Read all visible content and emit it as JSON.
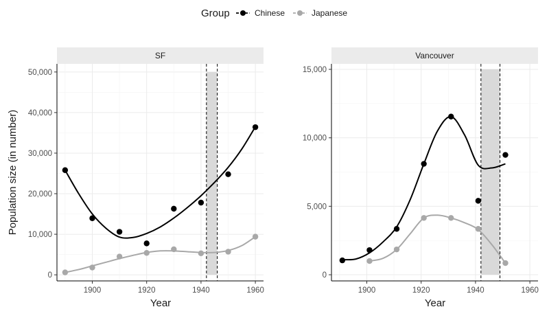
{
  "legend": {
    "title": "Group",
    "items": [
      {
        "label": "Chinese",
        "color": "#000000"
      },
      {
        "label": "Japanese",
        "color": "#a8a8a8"
      }
    ]
  },
  "axes": {
    "xlabel": "Year",
    "ylabel": "Population size (in number)"
  },
  "chart_data": [
    {
      "type": "scatter",
      "panel": "SF",
      "xlim": [
        1887,
        1963
      ],
      "ylim": [
        -1500,
        52000
      ],
      "xticks": [
        1900,
        1920,
        1940,
        1960
      ],
      "yticks": [
        0,
        10000,
        20000,
        30000,
        40000,
        50000
      ],
      "ytick_labels": [
        "0",
        "10,000",
        "20,000",
        "30,000",
        "40,000",
        "50,000"
      ],
      "grid": true,
      "shaded_interval": [
        1942,
        1946
      ],
      "series": [
        {
          "name": "Chinese",
          "color": "#000000",
          "points": [
            [
              1890,
              25800
            ],
            [
              1900,
              13950
            ],
            [
              1910,
              10600
            ],
            [
              1920,
              7750
            ],
            [
              1930,
              16300
            ],
            [
              1940,
              17800
            ],
            [
              1950,
              24800
            ],
            [
              1960,
              36400
            ]
          ],
          "smooth": [
            [
              1890,
              25800
            ],
            [
              1895,
              20000
            ],
            [
              1900,
              15000
            ],
            [
              1905,
              11500
            ],
            [
              1910,
              9300
            ],
            [
              1915,
              9200
            ],
            [
              1920,
              10200
            ],
            [
              1925,
              11800
            ],
            [
              1930,
              14000
            ],
            [
              1935,
              16600
            ],
            [
              1940,
              19500
            ],
            [
              1945,
              22800
            ],
            [
              1950,
              26500
            ],
            [
              1955,
              31000
            ],
            [
              1960,
              36500
            ]
          ]
        },
        {
          "name": "Japanese",
          "color": "#a8a8a8",
          "points": [
            [
              1890,
              600
            ],
            [
              1900,
              1800
            ],
            [
              1910,
              4500
            ],
            [
              1920,
              5400
            ],
            [
              1930,
              6300
            ],
            [
              1940,
              5300
            ],
            [
              1950,
              5700
            ],
            [
              1960,
              9400
            ]
          ],
          "smooth": [
            [
              1890,
              600
            ],
            [
              1895,
              1300
            ],
            [
              1900,
              2200
            ],
            [
              1905,
              3100
            ],
            [
              1910,
              4000
            ],
            [
              1915,
              4800
            ],
            [
              1920,
              5500
            ],
            [
              1925,
              5900
            ],
            [
              1930,
              5900
            ],
            [
              1935,
              5700
            ],
            [
              1940,
              5500
            ],
            [
              1945,
              5500
            ],
            [
              1950,
              6000
            ],
            [
              1955,
              7200
            ],
            [
              1960,
              9400
            ]
          ]
        }
      ]
    },
    {
      "type": "scatter",
      "panel": "Vancouver",
      "xlim": [
        1887,
        1963
      ],
      "ylim": [
        -450,
        15400
      ],
      "xticks": [
        1900,
        1920,
        1940,
        1960
      ],
      "yticks": [
        0,
        5000,
        10000,
        15000
      ],
      "ytick_labels": [
        "0",
        "5,000",
        "10,000",
        "15,000"
      ],
      "grid": true,
      "shaded_interval": [
        1942,
        1949
      ],
      "series": [
        {
          "name": "Chinese",
          "color": "#000000",
          "points": [
            [
              1891,
              1050
            ],
            [
              1901,
              1800
            ],
            [
              1911,
              3350
            ],
            [
              1921,
              8100
            ],
            [
              1931,
              11550
            ],
            [
              1941,
              5400
            ],
            [
              1951,
              8750
            ]
          ],
          "smooth": [
            [
              1891,
              1100
            ],
            [
              1896,
              1150
            ],
            [
              1901,
              1600
            ],
            [
              1906,
              2400
            ],
            [
              1911,
              3500
            ],
            [
              1916,
              5500
            ],
            [
              1921,
              8100
            ],
            [
              1926,
              10500
            ],
            [
              1931,
              11550
            ],
            [
              1936,
              10200
            ],
            [
              1941,
              8000
            ],
            [
              1946,
              7800
            ],
            [
              1951,
              8100
            ]
          ]
        },
        {
          "name": "Japanese",
          "color": "#a8a8a8",
          "points": [
            [
              1901,
              1000
            ],
            [
              1911,
              1850
            ],
            [
              1921,
              4150
            ],
            [
              1931,
              4150
            ],
            [
              1941,
              3350
            ],
            [
              1951,
              850
            ]
          ],
          "smooth": [
            [
              1901,
              1000
            ],
            [
              1906,
              1200
            ],
            [
              1911,
              1850
            ],
            [
              1916,
              3000
            ],
            [
              1921,
              4150
            ],
            [
              1926,
              4350
            ],
            [
              1931,
              4150
            ],
            [
              1936,
              3800
            ],
            [
              1941,
              3300
            ],
            [
              1946,
              2200
            ],
            [
              1951,
              850
            ]
          ]
        }
      ]
    }
  ]
}
